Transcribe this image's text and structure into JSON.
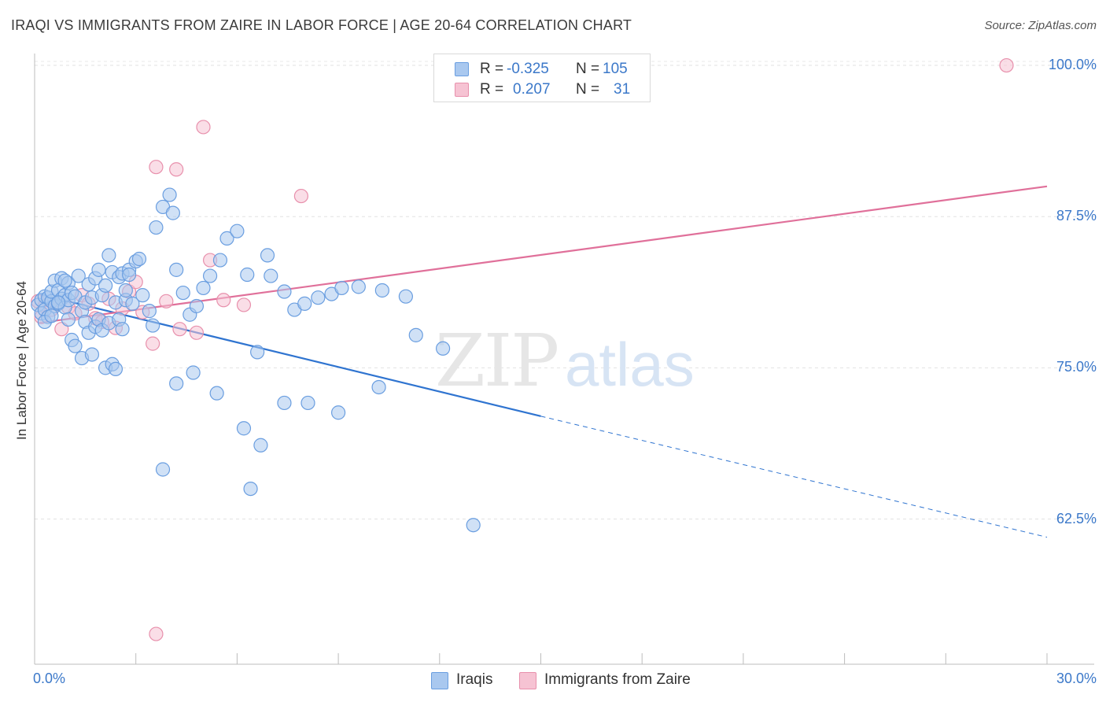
{
  "chart_data": {
    "type": "scatter",
    "title": "IRAQI VS IMMIGRANTS FROM ZAIRE IN LABOR FORCE | AGE 20-64 CORRELATION CHART",
    "source": "Source: ZipAtlas.com",
    "xlabel": "",
    "ylabel": "In Labor Force | Age 20-64",
    "xlim": [
      0,
      30
    ],
    "ylim": [
      50.5,
      101.5
    ],
    "x_tick_labels": [
      {
        "value": 0,
        "label": "0.0%"
      },
      {
        "value": 30,
        "label": "30.0%"
      }
    ],
    "y_tick_labels": [
      {
        "value": 100,
        "label": "100.0%"
      },
      {
        "value": 87.5,
        "label": "87.5%"
      },
      {
        "value": 75,
        "label": "75.0%"
      },
      {
        "value": 62.5,
        "label": "62.5%"
      }
    ],
    "watermark": {
      "part1": "ZIP",
      "part2": "atlas"
    },
    "series": [
      {
        "name": "Iraqis",
        "color": "#6a9ee0",
        "fill": "#a9c8ef",
        "line_color": "#2f74d0",
        "R": "-0.325",
        "N": "105",
        "trend": {
          "x0": 0.1,
          "y0": 81.1,
          "x1": 15.0,
          "y1": 71.0,
          "x_dash_end": 30.0,
          "y_dash_end": 61.0
        },
        "points": [
          [
            0.1,
            80.2
          ],
          [
            0.2,
            79.5
          ],
          [
            0.2,
            80.6
          ],
          [
            0.3,
            80.9
          ],
          [
            0.3,
            79.8
          ],
          [
            0.4,
            80.8
          ],
          [
            0.4,
            79.2
          ],
          [
            0.5,
            80.5
          ],
          [
            0.5,
            81.3
          ],
          [
            0.6,
            82.2
          ],
          [
            0.6,
            80.1
          ],
          [
            0.7,
            81.4
          ],
          [
            0.7,
            80.3
          ],
          [
            0.8,
            82.4
          ],
          [
            0.8,
            80.7
          ],
          [
            0.9,
            80.0
          ],
          [
            0.9,
            81.0
          ],
          [
            1.0,
            82.0
          ],
          [
            1.0,
            79.0
          ],
          [
            1.0,
            80.6
          ],
          [
            0.3,
            78.8
          ],
          [
            0.5,
            79.3
          ],
          [
            0.7,
            80.4
          ],
          [
            0.9,
            82.2
          ],
          [
            1.1,
            81.2
          ],
          [
            1.2,
            80.9
          ],
          [
            1.3,
            82.6
          ],
          [
            1.4,
            79.7
          ],
          [
            1.5,
            80.4
          ],
          [
            1.6,
            81.9
          ],
          [
            1.7,
            80.8
          ],
          [
            1.8,
            82.4
          ],
          [
            1.9,
            83.1
          ],
          [
            2.0,
            81.0
          ],
          [
            2.1,
            81.8
          ],
          [
            2.2,
            84.3
          ],
          [
            2.3,
            82.9
          ],
          [
            2.4,
            80.4
          ],
          [
            2.5,
            82.5
          ],
          [
            2.6,
            82.8
          ],
          [
            2.7,
            80.6
          ],
          [
            2.8,
            83.1
          ],
          [
            1.1,
            77.3
          ],
          [
            1.2,
            76.8
          ],
          [
            1.4,
            75.8
          ],
          [
            1.5,
            78.8
          ],
          [
            1.6,
            77.9
          ],
          [
            1.7,
            76.1
          ],
          [
            1.8,
            78.4
          ],
          [
            1.9,
            79.0
          ],
          [
            2.0,
            78.1
          ],
          [
            2.1,
            75.0
          ],
          [
            2.2,
            78.7
          ],
          [
            2.3,
            75.3
          ],
          [
            2.4,
            74.9
          ],
          [
            2.5,
            79.0
          ],
          [
            2.6,
            78.2
          ],
          [
            2.7,
            81.4
          ],
          [
            2.8,
            82.7
          ],
          [
            2.9,
            80.3
          ],
          [
            3.0,
            83.8
          ],
          [
            3.1,
            84.0
          ],
          [
            3.2,
            81.0
          ],
          [
            3.4,
            79.7
          ],
          [
            3.5,
            78.5
          ],
          [
            3.6,
            86.6
          ],
          [
            3.8,
            88.3
          ],
          [
            4.0,
            89.3
          ],
          [
            4.1,
            87.8
          ],
          [
            4.2,
            83.1
          ],
          [
            4.4,
            81.2
          ],
          [
            4.6,
            79.4
          ],
          [
            4.8,
            80.1
          ],
          [
            5.0,
            81.6
          ],
          [
            5.2,
            82.6
          ],
          [
            5.5,
            83.9
          ],
          [
            5.7,
            85.7
          ],
          [
            6.0,
            86.3
          ],
          [
            6.3,
            82.7
          ],
          [
            6.6,
            76.3
          ],
          [
            7.0,
            82.6
          ],
          [
            7.4,
            81.3
          ],
          [
            7.7,
            79.8
          ],
          [
            8.0,
            80.3
          ],
          [
            8.4,
            80.8
          ],
          [
            8.8,
            81.1
          ],
          [
            9.1,
            81.6
          ],
          [
            9.6,
            81.7
          ],
          [
            10.3,
            81.4
          ],
          [
            11.0,
            80.9
          ],
          [
            4.2,
            73.7
          ],
          [
            4.7,
            74.6
          ],
          [
            5.4,
            72.9
          ],
          [
            6.2,
            70.0
          ],
          [
            6.7,
            68.6
          ],
          [
            7.4,
            72.1
          ],
          [
            8.1,
            72.1
          ],
          [
            9.0,
            71.3
          ],
          [
            10.2,
            73.4
          ],
          [
            11.3,
            77.7
          ],
          [
            12.1,
            76.6
          ],
          [
            6.9,
            84.3
          ],
          [
            3.8,
            66.6
          ],
          [
            6.4,
            65.0
          ],
          [
            13.0,
            62.0
          ]
        ]
      },
      {
        "name": "Immigrants from Zaire",
        "color": "#e890ac",
        "fill": "#f6c3d3",
        "line_color": "#e0709a",
        "R": "0.207",
        "N": "31",
        "trend": {
          "x0": 0.1,
          "y0": 78.7,
          "x1": 30.0,
          "y1": 90.0
        },
        "points": [
          [
            0.1,
            80.5
          ],
          [
            0.2,
            79.2
          ],
          [
            0.3,
            80.1
          ],
          [
            0.5,
            79.8
          ],
          [
            0.7,
            80.4
          ],
          [
            0.8,
            78.2
          ],
          [
            1.0,
            80.0
          ],
          [
            1.2,
            79.5
          ],
          [
            1.4,
            81.0
          ],
          [
            1.6,
            80.3
          ],
          [
            1.8,
            79.1
          ],
          [
            2.0,
            78.8
          ],
          [
            2.2,
            80.7
          ],
          [
            2.4,
            78.3
          ],
          [
            2.6,
            79.9
          ],
          [
            2.8,
            81.3
          ],
          [
            3.0,
            82.1
          ],
          [
            3.2,
            79.6
          ],
          [
            3.5,
            77.0
          ],
          [
            3.9,
            80.5
          ],
          [
            4.3,
            78.2
          ],
          [
            4.8,
            77.9
          ],
          [
            5.2,
            83.9
          ],
          [
            5.6,
            80.6
          ],
          [
            6.2,
            80.2
          ],
          [
            3.6,
            91.6
          ],
          [
            4.2,
            91.4
          ],
          [
            5.0,
            94.9
          ],
          [
            7.9,
            89.2
          ],
          [
            28.8,
            100.0
          ],
          [
            3.6,
            53.0
          ]
        ]
      }
    ]
  },
  "legend": {
    "items": [
      {
        "label": "Iraqis",
        "fill": "#a9c8ef",
        "stroke": "#6a9ee0"
      },
      {
        "label": "Immigrants from Zaire",
        "fill": "#f6c3d3",
        "stroke": "#e890ac"
      }
    ]
  },
  "stats": {
    "r_label": "R =",
    "n_label": "N ="
  }
}
